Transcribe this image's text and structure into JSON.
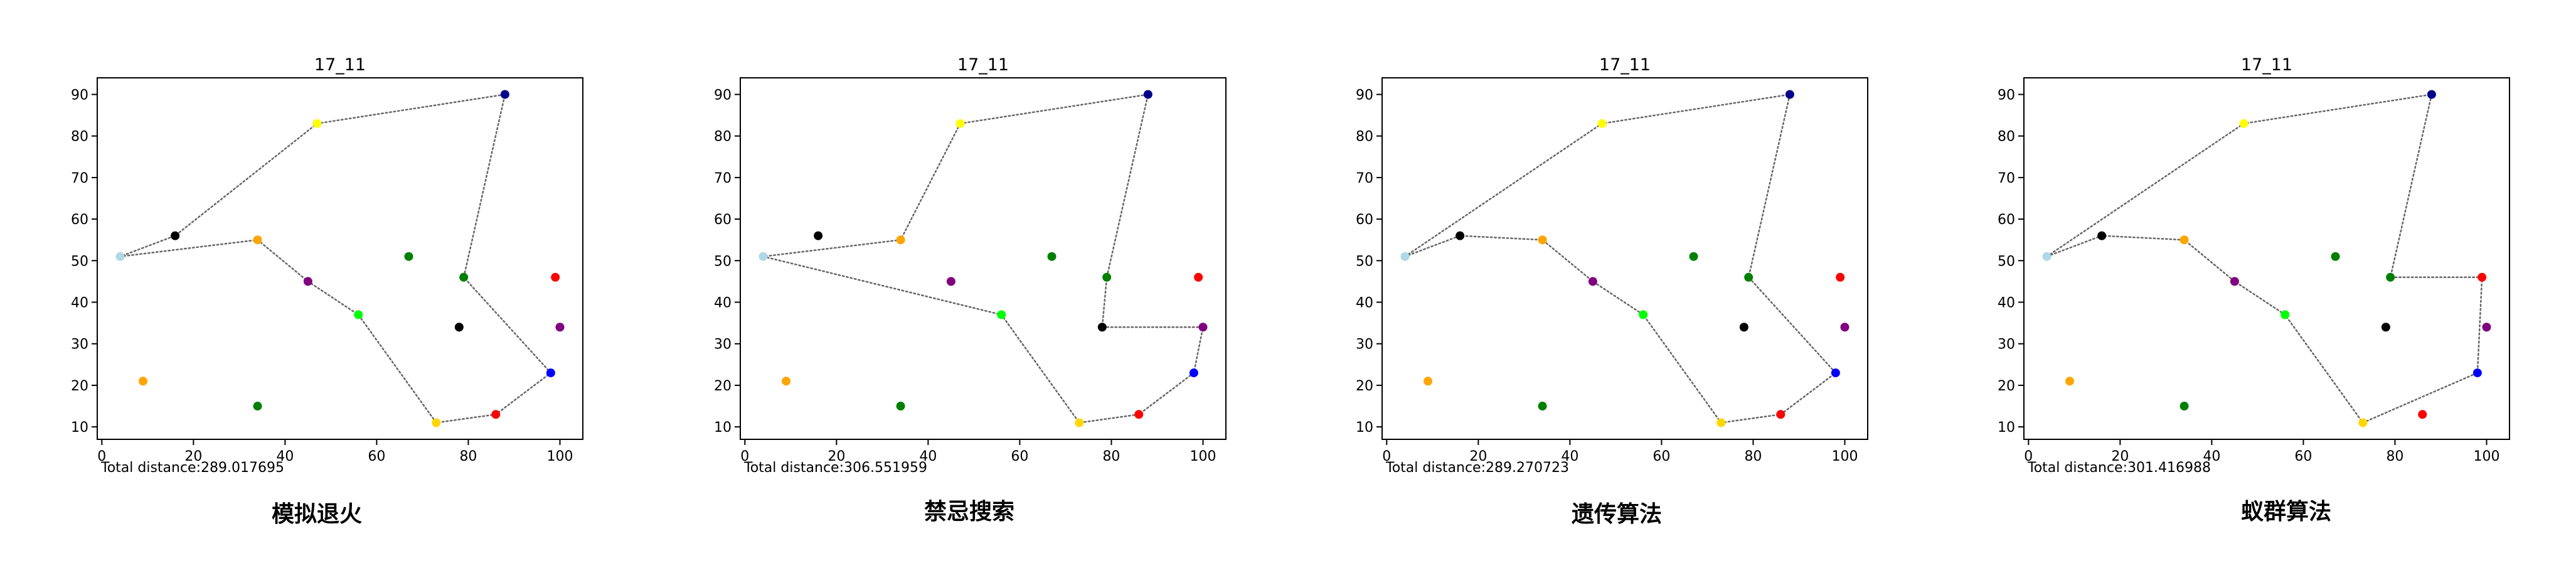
{
  "figure": {
    "captions": [
      "模拟退火",
      "禁忌搜索",
      "遗传算法",
      "蚁群算法"
    ]
  },
  "chart_data": [
    {
      "type": "scatter",
      "title": "17_11",
      "xlim": [
        -1,
        105
      ],
      "ylim": [
        7,
        94
      ],
      "xticks": [
        0,
        20,
        40,
        60,
        80,
        100
      ],
      "yticks": [
        10,
        20,
        30,
        40,
        50,
        60,
        70,
        80,
        90
      ],
      "annotation": "Total distance:289.017695",
      "points": [
        {
          "x": 4,
          "y": 51,
          "color": "#add8e6"
        },
        {
          "x": 16,
          "y": 56,
          "color": "#000000"
        },
        {
          "x": 34,
          "y": 55,
          "color": "#ffa500"
        },
        {
          "x": 45,
          "y": 45,
          "color": "#800080"
        },
        {
          "x": 56,
          "y": 37,
          "color": "#00ff00"
        },
        {
          "x": 67,
          "y": 51,
          "color": "#008000"
        },
        {
          "x": 79,
          "y": 46,
          "color": "#008000"
        },
        {
          "x": 78,
          "y": 34,
          "color": "#000000"
        },
        {
          "x": 88,
          "y": 90,
          "color": "#00008b"
        },
        {
          "x": 47,
          "y": 83,
          "color": "#ffff00"
        },
        {
          "x": 99,
          "y": 46,
          "color": "#ff0000"
        },
        {
          "x": 100,
          "y": 34,
          "color": "#800080"
        },
        {
          "x": 98,
          "y": 23,
          "color": "#0000ff"
        },
        {
          "x": 86,
          "y": 13,
          "color": "#ff0000"
        },
        {
          "x": 73,
          "y": 11,
          "color": "#ffd700"
        },
        {
          "x": 9,
          "y": 21,
          "color": "#ffa500"
        },
        {
          "x": 34,
          "y": 15,
          "color": "#008000"
        }
      ],
      "route": [
        [
          47,
          83
        ],
        [
          88,
          90
        ],
        [
          79,
          46
        ],
        [
          98,
          23
        ],
        [
          86,
          13
        ],
        [
          73,
          11
        ],
        [
          56,
          37
        ],
        [
          45,
          45
        ],
        [
          34,
          55
        ],
        [
          4,
          51
        ],
        [
          16,
          56
        ],
        [
          47,
          83
        ]
      ]
    },
    {
      "type": "scatter",
      "title": "17_11",
      "xlim": [
        -1,
        105
      ],
      "ylim": [
        7,
        94
      ],
      "xticks": [
        0,
        20,
        40,
        60,
        80,
        100
      ],
      "yticks": [
        10,
        20,
        30,
        40,
        50,
        60,
        70,
        80,
        90
      ],
      "annotation": "Total distance:306.551959",
      "points": [
        {
          "x": 4,
          "y": 51,
          "color": "#add8e6"
        },
        {
          "x": 16,
          "y": 56,
          "color": "#000000"
        },
        {
          "x": 34,
          "y": 55,
          "color": "#ffa500"
        },
        {
          "x": 45,
          "y": 45,
          "color": "#800080"
        },
        {
          "x": 56,
          "y": 37,
          "color": "#00ff00"
        },
        {
          "x": 67,
          "y": 51,
          "color": "#008000"
        },
        {
          "x": 79,
          "y": 46,
          "color": "#008000"
        },
        {
          "x": 78,
          "y": 34,
          "color": "#000000"
        },
        {
          "x": 88,
          "y": 90,
          "color": "#00008b"
        },
        {
          "x": 47,
          "y": 83,
          "color": "#ffff00"
        },
        {
          "x": 99,
          "y": 46,
          "color": "#ff0000"
        },
        {
          "x": 100,
          "y": 34,
          "color": "#800080"
        },
        {
          "x": 98,
          "y": 23,
          "color": "#0000ff"
        },
        {
          "x": 86,
          "y": 13,
          "color": "#ff0000"
        },
        {
          "x": 73,
          "y": 11,
          "color": "#ffd700"
        },
        {
          "x": 9,
          "y": 21,
          "color": "#ffa500"
        },
        {
          "x": 34,
          "y": 15,
          "color": "#008000"
        }
      ],
      "route": [
        [
          47,
          83
        ],
        [
          88,
          90
        ],
        [
          79,
          46
        ],
        [
          78,
          34
        ],
        [
          100,
          34
        ],
        [
          98,
          23
        ],
        [
          86,
          13
        ],
        [
          73,
          11
        ],
        [
          56,
          37
        ],
        [
          4,
          51
        ],
        [
          34,
          55
        ],
        [
          47,
          83
        ]
      ]
    },
    {
      "type": "scatter",
      "title": "17_11",
      "xlim": [
        -1,
        105
      ],
      "ylim": [
        7,
        94
      ],
      "xticks": [
        0,
        20,
        40,
        60,
        80,
        100
      ],
      "yticks": [
        10,
        20,
        30,
        40,
        50,
        60,
        70,
        80,
        90
      ],
      "annotation": "Total distance:289.270723",
      "points": [
        {
          "x": 4,
          "y": 51,
          "color": "#add8e6"
        },
        {
          "x": 16,
          "y": 56,
          "color": "#000000"
        },
        {
          "x": 34,
          "y": 55,
          "color": "#ffa500"
        },
        {
          "x": 45,
          "y": 45,
          "color": "#800080"
        },
        {
          "x": 56,
          "y": 37,
          "color": "#00ff00"
        },
        {
          "x": 67,
          "y": 51,
          "color": "#008000"
        },
        {
          "x": 79,
          "y": 46,
          "color": "#008000"
        },
        {
          "x": 78,
          "y": 34,
          "color": "#000000"
        },
        {
          "x": 88,
          "y": 90,
          "color": "#00008b"
        },
        {
          "x": 47,
          "y": 83,
          "color": "#ffff00"
        },
        {
          "x": 99,
          "y": 46,
          "color": "#ff0000"
        },
        {
          "x": 100,
          "y": 34,
          "color": "#800080"
        },
        {
          "x": 98,
          "y": 23,
          "color": "#0000ff"
        },
        {
          "x": 86,
          "y": 13,
          "color": "#ff0000"
        },
        {
          "x": 73,
          "y": 11,
          "color": "#ffd700"
        },
        {
          "x": 9,
          "y": 21,
          "color": "#ffa500"
        },
        {
          "x": 34,
          "y": 15,
          "color": "#008000"
        }
      ],
      "route": [
        [
          4,
          51
        ],
        [
          47,
          83
        ],
        [
          88,
          90
        ],
        [
          79,
          46
        ],
        [
          98,
          23
        ],
        [
          86,
          13
        ],
        [
          73,
          11
        ],
        [
          56,
          37
        ],
        [
          45,
          45
        ],
        [
          34,
          55
        ],
        [
          16,
          56
        ],
        [
          4,
          51
        ]
      ]
    },
    {
      "type": "scatter",
      "title": "17_11",
      "xlim": [
        -1,
        105
      ],
      "ylim": [
        7,
        94
      ],
      "xticks": [
        0,
        20,
        40,
        60,
        80,
        100
      ],
      "yticks": [
        10,
        20,
        30,
        40,
        50,
        60,
        70,
        80,
        90
      ],
      "annotation": "Total distance:301.416988",
      "points": [
        {
          "x": 4,
          "y": 51,
          "color": "#add8e6"
        },
        {
          "x": 16,
          "y": 56,
          "color": "#000000"
        },
        {
          "x": 34,
          "y": 55,
          "color": "#ffa500"
        },
        {
          "x": 45,
          "y": 45,
          "color": "#800080"
        },
        {
          "x": 56,
          "y": 37,
          "color": "#00ff00"
        },
        {
          "x": 67,
          "y": 51,
          "color": "#008000"
        },
        {
          "x": 79,
          "y": 46,
          "color": "#008000"
        },
        {
          "x": 78,
          "y": 34,
          "color": "#000000"
        },
        {
          "x": 88,
          "y": 90,
          "color": "#00008b"
        },
        {
          "x": 47,
          "y": 83,
          "color": "#ffff00"
        },
        {
          "x": 99,
          "y": 46,
          "color": "#ff0000"
        },
        {
          "x": 100,
          "y": 34,
          "color": "#800080"
        },
        {
          "x": 98,
          "y": 23,
          "color": "#0000ff"
        },
        {
          "x": 86,
          "y": 13,
          "color": "#ff0000"
        },
        {
          "x": 73,
          "y": 11,
          "color": "#ffd700"
        },
        {
          "x": 9,
          "y": 21,
          "color": "#ffa500"
        },
        {
          "x": 34,
          "y": 15,
          "color": "#008000"
        }
      ],
      "route": [
        [
          4,
          51
        ],
        [
          47,
          83
        ],
        [
          88,
          90
        ],
        [
          79,
          46
        ],
        [
          99,
          46
        ],
        [
          98,
          23
        ],
        [
          73,
          11
        ],
        [
          56,
          37
        ],
        [
          45,
          45
        ],
        [
          34,
          55
        ],
        [
          16,
          56
        ],
        [
          4,
          51
        ]
      ]
    }
  ]
}
